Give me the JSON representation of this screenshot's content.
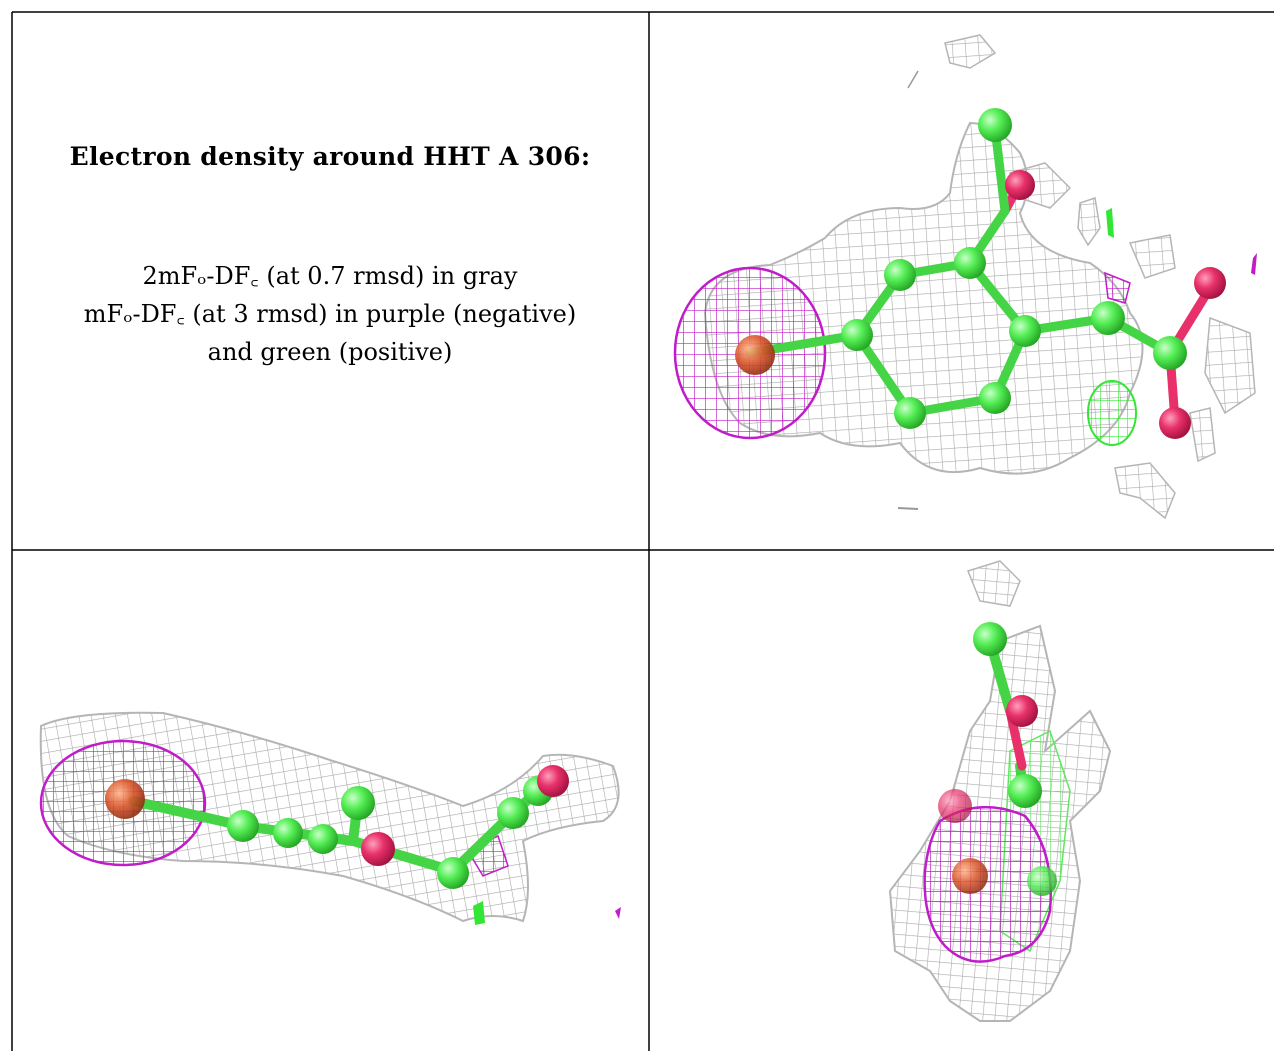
{
  "caption": {
    "title": "Electron density around HHT A 306:",
    "lines": [
      "2mFₒ-DF꜀ (at 0.7 rmsd) in gray",
      "mFₒ-DF꜀ (at 3 rmsd) in purple (negative)",
      "and green (positive)"
    ]
  },
  "colors": {
    "mesh_2fo": "#a9a9a9",
    "mesh_negative": "#c01cc9",
    "mesh_positive": "#33e633",
    "carbon": "#55ee55",
    "oxygen": "#e8316a",
    "metal": "#d9552b"
  }
}
